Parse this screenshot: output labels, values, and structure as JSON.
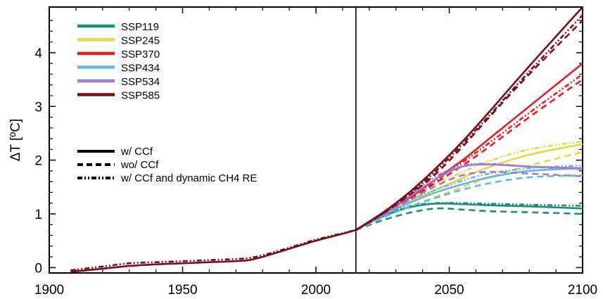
{
  "chart_data": {
    "type": "line",
    "title": "",
    "xlabel": "",
    "ylabel": "ΔT [ºC]",
    "xlim": [
      1900,
      2100
    ],
    "ylim": [
      -0.1,
      4.85
    ],
    "x_ticks": [
      1900,
      1950,
      2000,
      2050,
      2100
    ],
    "y_ticks": [
      0,
      1,
      2,
      3,
      4
    ],
    "x_tick_labels": [
      "1900",
      "1950",
      "2000",
      "2050",
      "2100"
    ],
    "y_tick_labels": [
      "0",
      "1",
      "2",
      "3",
      "4"
    ],
    "vertical_line_x": 2015,
    "grid": false,
    "legend_position": "top-left",
    "linestyle_legend": [
      {
        "style": "solid",
        "label": "w/ CCf"
      },
      {
        "style": "dashed",
        "label": "wo/ CCf"
      },
      {
        "style": "dashdotdot",
        "label": "w/ CCf and dynamic CH4 RE"
      }
    ],
    "historical": {
      "color": "#7b0c1c",
      "x": [
        1908,
        1920,
        1930,
        1940,
        1950,
        1960,
        1970,
        1975,
        1980,
        1990,
        2000,
        2010,
        2015
      ],
      "y": [
        -0.08,
        -0.02,
        0.03,
        0.06,
        0.08,
        0.1,
        0.12,
        0.14,
        0.2,
        0.35,
        0.5,
        0.63,
        0.7
      ],
      "y_dynamic": [
        -0.05,
        0.02,
        0.08,
        0.1,
        0.12,
        0.14,
        0.16,
        0.18,
        0.23,
        0.37,
        0.52,
        0.64,
        0.7
      ]
    },
    "series": [
      {
        "name": "SSP119",
        "color": "#1a8f7a",
        "x": [
          2015,
          2025,
          2035,
          2045,
          2055,
          2065,
          2080,
          2100
        ],
        "solid": [
          0.7,
          0.95,
          1.12,
          1.19,
          1.18,
          1.16,
          1.14,
          1.1
        ],
        "dashed": [
          0.7,
          0.88,
          1.02,
          1.1,
          1.08,
          1.05,
          1.03,
          1.0
        ],
        "dashdot": [
          0.7,
          0.96,
          1.14,
          1.2,
          1.2,
          1.19,
          1.17,
          1.15
        ]
      },
      {
        "name": "SSP245",
        "color": "#e6d83c",
        "x": [
          2015,
          2025,
          2035,
          2045,
          2055,
          2065,
          2080,
          2100
        ],
        "solid": [
          0.7,
          0.98,
          1.22,
          1.45,
          1.67,
          1.87,
          2.1,
          2.3
        ],
        "dashed": [
          0.7,
          0.93,
          1.13,
          1.32,
          1.5,
          1.68,
          1.9,
          2.15
        ],
        "dashdot": [
          0.7,
          1.0,
          1.28,
          1.55,
          1.78,
          1.98,
          2.2,
          2.35
        ]
      },
      {
        "name": "SSP370",
        "color": "#e41e21",
        "x": [
          2015,
          2025,
          2035,
          2045,
          2055,
          2065,
          2080,
          2100
        ],
        "solid": [
          0.7,
          1.0,
          1.3,
          1.65,
          2.0,
          2.4,
          3.0,
          3.8
        ],
        "dashed": [
          0.7,
          0.98,
          1.27,
          1.58,
          1.9,
          2.25,
          2.8,
          3.5
        ],
        "dashdot": [
          0.7,
          1.0,
          1.3,
          1.62,
          1.96,
          2.32,
          2.88,
          3.6
        ]
      },
      {
        "name": "SSP434",
        "color": "#62b8e0",
        "x": [
          2015,
          2025,
          2035,
          2045,
          2055,
          2065,
          2080,
          2100
        ],
        "solid": [
          0.7,
          0.97,
          1.2,
          1.4,
          1.55,
          1.68,
          1.8,
          1.85
        ],
        "dashed": [
          0.7,
          0.93,
          1.13,
          1.3,
          1.45,
          1.57,
          1.68,
          1.72
        ],
        "dashdot": [
          0.7,
          0.99,
          1.25,
          1.45,
          1.62,
          1.75,
          1.85,
          1.9
        ]
      },
      {
        "name": "SSP534",
        "color": "#a478d6",
        "x": [
          2015,
          2025,
          2035,
          2045,
          2055,
          2065,
          2080,
          2100
        ],
        "solid": [
          0.7,
          1.0,
          1.32,
          1.65,
          1.88,
          1.92,
          1.88,
          1.85
        ],
        "dashed": [
          0.7,
          0.97,
          1.25,
          1.52,
          1.72,
          1.78,
          1.75,
          1.7
        ],
        "dashdot": [
          0.7,
          1.02,
          1.35,
          1.7,
          1.9,
          1.93,
          1.88,
          1.83
        ]
      },
      {
        "name": "SSP585",
        "color": "#7b0c1c",
        "x": [
          2015,
          2025,
          2035,
          2045,
          2055,
          2065,
          2080,
          2100
        ],
        "solid": [
          0.7,
          1.02,
          1.4,
          1.85,
          2.35,
          2.9,
          3.75,
          4.85
        ],
        "dashed": [
          0.7,
          1.0,
          1.35,
          1.75,
          2.25,
          2.8,
          3.6,
          4.6
        ],
        "dashdot": [
          0.7,
          1.0,
          1.37,
          1.8,
          2.3,
          2.83,
          3.65,
          4.7
        ]
      }
    ]
  }
}
